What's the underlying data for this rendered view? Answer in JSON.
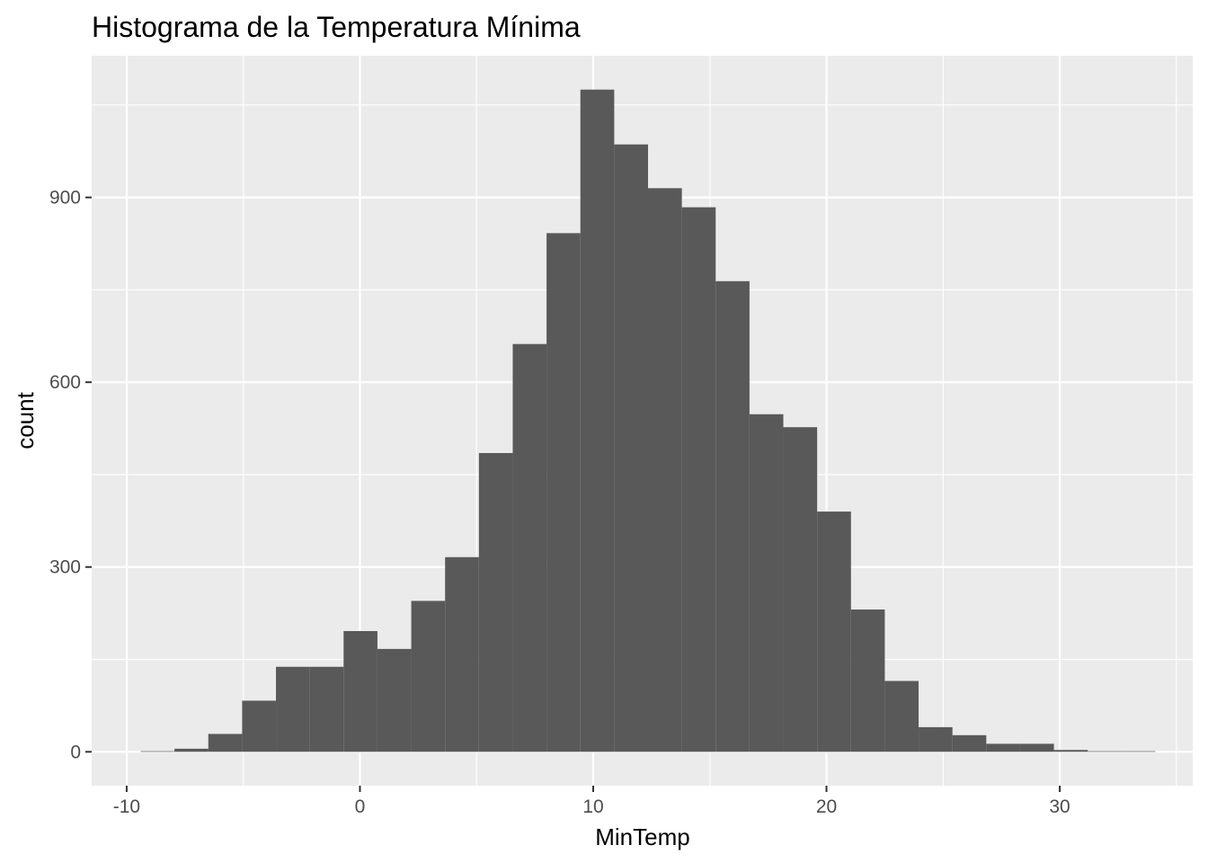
{
  "chart_data": {
    "type": "bar",
    "title": "Histograma de la Temperatura Mínima",
    "xlabel": "MinTemp",
    "ylabel": "count",
    "xlim": [
      -11.5,
      35.7
    ],
    "ylim": [
      -55,
      1130
    ],
    "x_ticks": [
      -10,
      0,
      10,
      20,
      30
    ],
    "x_tick_labels": [
      "-10",
      "0",
      "10",
      "20",
      "30"
    ],
    "y_ticks": [
      0,
      300,
      600,
      900
    ],
    "y_tick_labels": [
      "0",
      "300",
      "600",
      "900"
    ],
    "grid": true,
    "bin_edges": [
      -9.4,
      -7.95,
      -6.5,
      -5.05,
      -3.6,
      -2.15,
      -0.7,
      0.75,
      2.2,
      3.65,
      5.1,
      6.55,
      8.0,
      9.45,
      10.9,
      12.35,
      13.8,
      15.25,
      16.7,
      18.15,
      19.6,
      21.05,
      22.5,
      23.95,
      25.4,
      26.85,
      28.3,
      29.75,
      31.2,
      32.65,
      34.1
    ],
    "values": [
      1,
      5,
      29,
      83,
      138,
      138,
      196,
      167,
      245,
      316,
      485,
      662,
      842,
      1075,
      986,
      915,
      884,
      764,
      548,
      527,
      390,
      231,
      115,
      40,
      27,
      13,
      13,
      3,
      1,
      1
    ],
    "colors": {
      "panel_background": "#ebebeb",
      "grid_major": "#ffffff",
      "bar_fill": "#595959",
      "tick_text": "#4d4d4d",
      "tick_mark": "#333333"
    }
  }
}
